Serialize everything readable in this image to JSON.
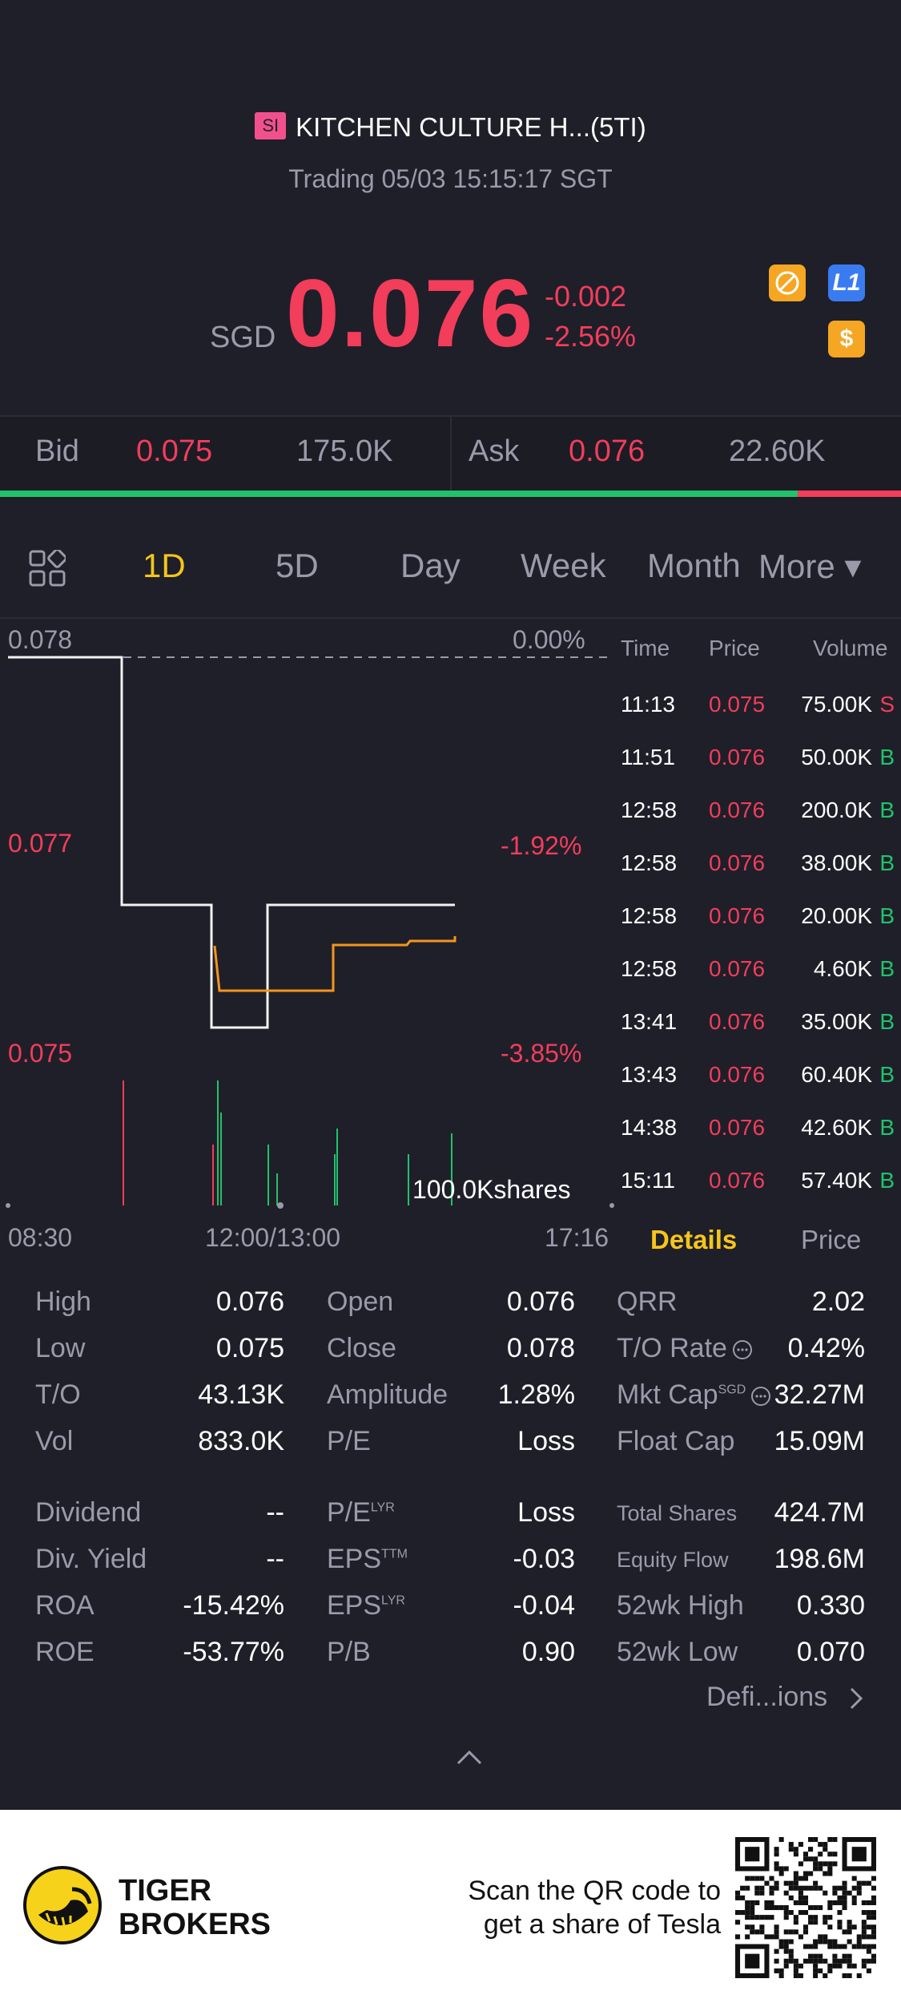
{
  "header": {
    "badge": "SI",
    "title": "KITCHEN CULTURE H...(5TI)",
    "status": "Trading 05/03 15:15:17 SGT",
    "currency": "SGD",
    "price": "0.076",
    "change_abs": "-0.002",
    "change_pct": "-2.56%",
    "icons": [
      "no-shorting-icon",
      "level1-icon",
      "dollar-icon"
    ],
    "level_badge": "L1",
    "dollar_badge": "$"
  },
  "bidask": {
    "bid_label": "Bid",
    "bid_price": "0.075",
    "bid_size": "175.0K",
    "ask_label": "Ask",
    "ask_price": "0.076",
    "ask_size": "22.60K",
    "bid_share": 0.885
  },
  "tabs": [
    "1D",
    "5D",
    "Day",
    "Week",
    "Month",
    "More ▾"
  ],
  "active_tab": "1D",
  "chart": {
    "y_top": "0.078",
    "y_mid": "0.077",
    "y_low": "0.075",
    "pct_top": "0.00%",
    "pct_mid": "-1.92%",
    "pct_low": "-3.85%",
    "volume_label": "100.0Kshares",
    "x_start": "08:30",
    "x_mid": "12:00/13:00",
    "x_end": "17:16"
  },
  "trades": {
    "headers": [
      "Time",
      "Price",
      "Volume"
    ],
    "rows": [
      {
        "time": "11:13",
        "price": "0.075",
        "volume": "75.00K",
        "side": "S"
      },
      {
        "time": "11:51",
        "price": "0.076",
        "volume": "50.00K",
        "side": "B"
      },
      {
        "time": "12:58",
        "price": "0.076",
        "volume": "200.0K",
        "side": "B"
      },
      {
        "time": "12:58",
        "price": "0.076",
        "volume": "38.00K",
        "side": "B"
      },
      {
        "time": "12:58",
        "price": "0.076",
        "volume": "20.00K",
        "side": "B"
      },
      {
        "time": "12:58",
        "price": "0.076",
        "volume": "4.60K",
        "side": "B"
      },
      {
        "time": "13:41",
        "price": "0.076",
        "volume": "35.00K",
        "side": "B"
      },
      {
        "time": "13:43",
        "price": "0.076",
        "volume": "60.40K",
        "side": "B"
      },
      {
        "time": "14:38",
        "price": "0.076",
        "volume": "42.60K",
        "side": "B"
      },
      {
        "time": "15:11",
        "price": "0.076",
        "volume": "57.40K",
        "side": "B"
      }
    ],
    "tab_details": "Details",
    "tab_price": "Price"
  },
  "stats": {
    "col1": [
      {
        "label": "High",
        "value": "0.076"
      },
      {
        "label": "Low",
        "value": "0.075"
      },
      {
        "label": "T/O",
        "value": "43.13K"
      },
      {
        "label": "Vol",
        "value": "833.0K"
      }
    ],
    "col2": [
      {
        "label": "Open",
        "value": "0.076"
      },
      {
        "label": "Close",
        "value": "0.078"
      },
      {
        "label": "Amplitude",
        "value": "1.28%"
      },
      {
        "label": "P/E",
        "value": "Loss"
      }
    ],
    "col3": [
      {
        "label": "QRR",
        "value": "2.02"
      },
      {
        "label": "T/O Rate",
        "value": "0.42%"
      },
      {
        "label": "Mkt Cap",
        "value": "32.27M",
        "sup": "SGD"
      },
      {
        "label": "Float Cap",
        "value": "15.09M"
      }
    ],
    "col1b": [
      {
        "label": "Dividend",
        "value": "--"
      },
      {
        "label": "Div. Yield",
        "value": "--"
      },
      {
        "label": "ROA",
        "value": "-15.42%"
      },
      {
        "label": "ROE",
        "value": "-53.77%"
      }
    ],
    "col2b": [
      {
        "label": "P/E",
        "value": "Loss",
        "sup": "LYR"
      },
      {
        "label": "EPS",
        "value": "-0.03",
        "sup": "TTM"
      },
      {
        "label": "EPS",
        "value": "-0.04",
        "sup": "LYR"
      },
      {
        "label": "P/B",
        "value": "0.90"
      }
    ],
    "col3b": [
      {
        "label": "Total Shares",
        "value": "424.7M"
      },
      {
        "label": "Equity Flow",
        "value": "198.6M"
      },
      {
        "label": "52wk High",
        "value": "0.330"
      },
      {
        "label": "52wk Low",
        "value": "0.070"
      }
    ],
    "definitions": "Defi...ions"
  },
  "footer": {
    "brand_line1": "TIGER",
    "brand_line2": "BROKERS",
    "promo_line1": "Scan the QR code to",
    "promo_line2": "get a share of Tesla"
  }
}
